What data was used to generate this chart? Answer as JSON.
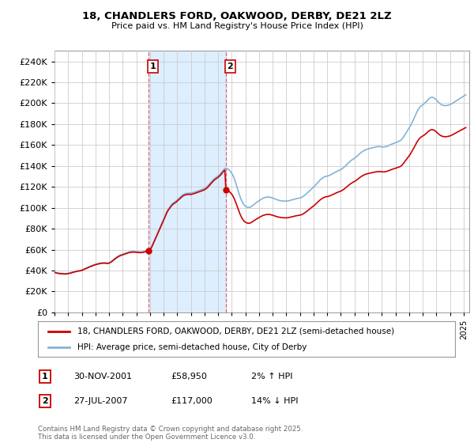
{
  "title": "18, CHANDLERS FORD, OAKWOOD, DERBY, DE21 2LZ",
  "subtitle": "Price paid vs. HM Land Registry's House Price Index (HPI)",
  "ylim": [
    0,
    250000
  ],
  "yticks": [
    0,
    20000,
    40000,
    60000,
    80000,
    100000,
    120000,
    140000,
    160000,
    180000,
    200000,
    220000,
    240000
  ],
  "legend_line1": "18, CHANDLERS FORD, OAKWOOD, DERBY, DE21 2LZ (semi-detached house)",
  "legend_line2": "HPI: Average price, semi-detached house, City of Derby",
  "sale_color": "#cc0000",
  "hpi_color": "#82b4d8",
  "grid_color": "#cccccc",
  "vspan_color": "#ddeeff",
  "vline_color": "#dd4444",
  "copyright_text": "Contains HM Land Registry data © Crown copyright and database right 2025.\nThis data is licensed under the Open Government Licence v3.0.",
  "sale1_date": [
    2001,
    11,
    30
  ],
  "sale1_price": 58950,
  "sale2_date": [
    2007,
    7,
    27
  ],
  "sale2_price": 117000,
  "ann1_date": "30-NOV-2001",
  "ann1_price": "£58,950",
  "ann1_hpi": "2% ↑ HPI",
  "ann2_date": "27-JUL-2007",
  "ann2_price": "£117,000",
  "ann2_hpi": "14% ↓ HPI",
  "hpi_data": [
    [
      1995,
      1,
      38500
    ],
    [
      1995,
      2,
      38200
    ],
    [
      1995,
      3,
      37900
    ],
    [
      1995,
      4,
      37700
    ],
    [
      1995,
      5,
      37500
    ],
    [
      1995,
      6,
      37400
    ],
    [
      1995,
      7,
      37300
    ],
    [
      1995,
      8,
      37200
    ],
    [
      1995,
      9,
      37100
    ],
    [
      1995,
      10,
      37000
    ],
    [
      1995,
      11,
      37100
    ],
    [
      1995,
      12,
      37200
    ],
    [
      1996,
      1,
      37400
    ],
    [
      1996,
      2,
      37600
    ],
    [
      1996,
      3,
      37900
    ],
    [
      1996,
      4,
      38200
    ],
    [
      1996,
      5,
      38500
    ],
    [
      1996,
      6,
      38800
    ],
    [
      1996,
      7,
      39100
    ],
    [
      1996,
      8,
      39400
    ],
    [
      1996,
      9,
      39600
    ],
    [
      1996,
      10,
      39800
    ],
    [
      1996,
      11,
      40000
    ],
    [
      1996,
      12,
      40200
    ],
    [
      1997,
      1,
      40500
    ],
    [
      1997,
      2,
      41000
    ],
    [
      1997,
      3,
      41500
    ],
    [
      1997,
      4,
      42000
    ],
    [
      1997,
      5,
      42500
    ],
    [
      1997,
      6,
      43000
    ],
    [
      1997,
      7,
      43500
    ],
    [
      1997,
      8,
      44000
    ],
    [
      1997,
      9,
      44400
    ],
    [
      1997,
      10,
      44800
    ],
    [
      1997,
      11,
      45200
    ],
    [
      1997,
      12,
      45600
    ],
    [
      1998,
      1,
      46000
    ],
    [
      1998,
      2,
      46300
    ],
    [
      1998,
      3,
      46600
    ],
    [
      1998,
      4,
      46900
    ],
    [
      1998,
      5,
      47100
    ],
    [
      1998,
      6,
      47300
    ],
    [
      1998,
      7,
      47400
    ],
    [
      1998,
      8,
      47500
    ],
    [
      1998,
      9,
      47500
    ],
    [
      1998,
      10,
      47400
    ],
    [
      1998,
      11,
      47300
    ],
    [
      1998,
      12,
      47200
    ],
    [
      1999,
      1,
      47500
    ],
    [
      1999,
      2,
      48000
    ],
    [
      1999,
      3,
      48700
    ],
    [
      1999,
      4,
      49500
    ],
    [
      1999,
      5,
      50400
    ],
    [
      1999,
      6,
      51300
    ],
    [
      1999,
      7,
      52200
    ],
    [
      1999,
      8,
      53000
    ],
    [
      1999,
      9,
      53700
    ],
    [
      1999,
      10,
      54300
    ],
    [
      1999,
      11,
      54800
    ],
    [
      1999,
      12,
      55200
    ],
    [
      2000,
      1,
      55600
    ],
    [
      2000,
      2,
      56000
    ],
    [
      2000,
      3,
      56400
    ],
    [
      2000,
      4,
      56800
    ],
    [
      2000,
      5,
      57200
    ],
    [
      2000,
      6,
      57500
    ],
    [
      2000,
      7,
      57800
    ],
    [
      2000,
      8,
      58000
    ],
    [
      2000,
      9,
      58100
    ],
    [
      2000,
      10,
      58200
    ],
    [
      2000,
      11,
      58200
    ],
    [
      2000,
      12,
      58100
    ],
    [
      2001,
      1,
      58000
    ],
    [
      2001,
      2,
      57900
    ],
    [
      2001,
      3,
      57800
    ],
    [
      2001,
      4,
      57700
    ],
    [
      2001,
      5,
      57700
    ],
    [
      2001,
      6,
      57800
    ],
    [
      2001,
      7,
      58000
    ],
    [
      2001,
      8,
      58300
    ],
    [
      2001,
      9,
      58600
    ],
    [
      2001,
      10,
      58900
    ],
    [
      2001,
      11,
      59200
    ],
    [
      2001,
      12,
      59600
    ],
    [
      2002,
      1,
      60500
    ],
    [
      2002,
      2,
      62000
    ],
    [
      2002,
      3,
      64000
    ],
    [
      2002,
      4,
      66500
    ],
    [
      2002,
      5,
      69000
    ],
    [
      2002,
      6,
      71500
    ],
    [
      2002,
      7,
      74000
    ],
    [
      2002,
      8,
      76500
    ],
    [
      2002,
      9,
      79000
    ],
    [
      2002,
      10,
      81500
    ],
    [
      2002,
      11,
      84000
    ],
    [
      2002,
      12,
      86500
    ],
    [
      2003,
      1,
      89000
    ],
    [
      2003,
      2,
      91500
    ],
    [
      2003,
      3,
      94000
    ],
    [
      2003,
      4,
      96500
    ],
    [
      2003,
      5,
      98500
    ],
    [
      2003,
      6,
      100000
    ],
    [
      2003,
      7,
      101500
    ],
    [
      2003,
      8,
      103000
    ],
    [
      2003,
      9,
      104200
    ],
    [
      2003,
      10,
      105000
    ],
    [
      2003,
      11,
      105800
    ],
    [
      2003,
      12,
      106500
    ],
    [
      2004,
      1,
      107500
    ],
    [
      2004,
      2,
      108500
    ],
    [
      2004,
      3,
      109500
    ],
    [
      2004,
      4,
      110500
    ],
    [
      2004,
      5,
      111500
    ],
    [
      2004,
      6,
      112500
    ],
    [
      2004,
      7,
      113000
    ],
    [
      2004,
      8,
      113500
    ],
    [
      2004,
      9,
      113800
    ],
    [
      2004,
      10,
      113900
    ],
    [
      2004,
      11,
      114000
    ],
    [
      2004,
      12,
      114000
    ],
    [
      2005,
      1,
      114000
    ],
    [
      2005,
      2,
      114200
    ],
    [
      2005,
      3,
      114500
    ],
    [
      2005,
      4,
      114800
    ],
    [
      2005,
      5,
      115200
    ],
    [
      2005,
      6,
      115600
    ],
    [
      2005,
      7,
      116000
    ],
    [
      2005,
      8,
      116400
    ],
    [
      2005,
      9,
      116800
    ],
    [
      2005,
      10,
      117200
    ],
    [
      2005,
      11,
      117600
    ],
    [
      2005,
      12,
      118000
    ],
    [
      2006,
      1,
      118500
    ],
    [
      2006,
      2,
      119200
    ],
    [
      2006,
      3,
      120000
    ],
    [
      2006,
      4,
      121000
    ],
    [
      2006,
      5,
      122200
    ],
    [
      2006,
      6,
      123500
    ],
    [
      2006,
      7,
      124800
    ],
    [
      2006,
      8,
      126000
    ],
    [
      2006,
      9,
      127200
    ],
    [
      2006,
      10,
      128200
    ],
    [
      2006,
      11,
      129000
    ],
    [
      2006,
      12,
      129700
    ],
    [
      2007,
      1,
      130500
    ],
    [
      2007,
      2,
      131500
    ],
    [
      2007,
      3,
      132500
    ],
    [
      2007,
      4,
      133800
    ],
    [
      2007,
      5,
      135200
    ],
    [
      2007,
      6,
      136500
    ],
    [
      2007,
      7,
      137500
    ],
    [
      2007,
      8,
      137800
    ],
    [
      2007,
      9,
      137500
    ],
    [
      2007,
      10,
      136800
    ],
    [
      2007,
      11,
      135800
    ],
    [
      2007,
      12,
      134500
    ],
    [
      2008,
      1,
      133000
    ],
    [
      2008,
      2,
      131000
    ],
    [
      2008,
      3,
      128500
    ],
    [
      2008,
      4,
      125500
    ],
    [
      2008,
      5,
      122000
    ],
    [
      2008,
      6,
      118500
    ],
    [
      2008,
      7,
      115000
    ],
    [
      2008,
      8,
      111500
    ],
    [
      2008,
      9,
      108500
    ],
    [
      2008,
      10,
      106000
    ],
    [
      2008,
      11,
      104000
    ],
    [
      2008,
      12,
      102500
    ],
    [
      2009,
      1,
      101500
    ],
    [
      2009,
      2,
      100800
    ],
    [
      2009,
      3,
      100400
    ],
    [
      2009,
      4,
      100300
    ],
    [
      2009,
      5,
      100500
    ],
    [
      2009,
      6,
      101000
    ],
    [
      2009,
      7,
      101800
    ],
    [
      2009,
      8,
      102700
    ],
    [
      2009,
      9,
      103600
    ],
    [
      2009,
      10,
      104500
    ],
    [
      2009,
      11,
      105300
    ],
    [
      2009,
      12,
      106000
    ],
    [
      2010,
      1,
      106800
    ],
    [
      2010,
      2,
      107500
    ],
    [
      2010,
      3,
      108200
    ],
    [
      2010,
      4,
      108800
    ],
    [
      2010,
      5,
      109300
    ],
    [
      2010,
      6,
      109700
    ],
    [
      2010,
      7,
      110000
    ],
    [
      2010,
      8,
      110200
    ],
    [
      2010,
      9,
      110300
    ],
    [
      2010,
      10,
      110200
    ],
    [
      2010,
      11,
      110000
    ],
    [
      2010,
      12,
      109700
    ],
    [
      2011,
      1,
      109300
    ],
    [
      2011,
      2,
      108900
    ],
    [
      2011,
      3,
      108500
    ],
    [
      2011,
      4,
      108000
    ],
    [
      2011,
      5,
      107600
    ],
    [
      2011,
      6,
      107300
    ],
    [
      2011,
      7,
      107000
    ],
    [
      2011,
      8,
      106800
    ],
    [
      2011,
      9,
      106600
    ],
    [
      2011,
      10,
      106500
    ],
    [
      2011,
      11,
      106400
    ],
    [
      2011,
      12,
      106400
    ],
    [
      2012,
      1,
      106400
    ],
    [
      2012,
      2,
      106500
    ],
    [
      2012,
      3,
      106700
    ],
    [
      2012,
      4,
      107000
    ],
    [
      2012,
      5,
      107300
    ],
    [
      2012,
      6,
      107600
    ],
    [
      2012,
      7,
      107900
    ],
    [
      2012,
      8,
      108200
    ],
    [
      2012,
      9,
      108500
    ],
    [
      2012,
      10,
      108800
    ],
    [
      2012,
      11,
      109000
    ],
    [
      2012,
      12,
      109200
    ],
    [
      2013,
      1,
      109400
    ],
    [
      2013,
      2,
      109800
    ],
    [
      2013,
      3,
      110300
    ],
    [
      2013,
      4,
      111000
    ],
    [
      2013,
      5,
      111800
    ],
    [
      2013,
      6,
      112700
    ],
    [
      2013,
      7,
      113700
    ],
    [
      2013,
      8,
      114700
    ],
    [
      2013,
      9,
      115700
    ],
    [
      2013,
      10,
      116700
    ],
    [
      2013,
      11,
      117700
    ],
    [
      2013,
      12,
      118700
    ],
    [
      2014,
      1,
      119800
    ],
    [
      2014,
      2,
      120900
    ],
    [
      2014,
      3,
      122100
    ],
    [
      2014,
      4,
      123300
    ],
    [
      2014,
      5,
      124500
    ],
    [
      2014,
      6,
      125700
    ],
    [
      2014,
      7,
      126800
    ],
    [
      2014,
      8,
      127800
    ],
    [
      2014,
      9,
      128600
    ],
    [
      2014,
      10,
      129300
    ],
    [
      2014,
      11,
      129800
    ],
    [
      2014,
      12,
      130100
    ],
    [
      2015,
      1,
      130300
    ],
    [
      2015,
      2,
      130600
    ],
    [
      2015,
      3,
      131000
    ],
    [
      2015,
      4,
      131500
    ],
    [
      2015,
      5,
      132100
    ],
    [
      2015,
      6,
      132700
    ],
    [
      2015,
      7,
      133400
    ],
    [
      2015,
      8,
      134000
    ],
    [
      2015,
      9,
      134600
    ],
    [
      2015,
      10,
      135100
    ],
    [
      2015,
      11,
      135600
    ],
    [
      2015,
      12,
      136000
    ],
    [
      2016,
      1,
      136500
    ],
    [
      2016,
      2,
      137200
    ],
    [
      2016,
      3,
      138000
    ],
    [
      2016,
      4,
      139000
    ],
    [
      2016,
      5,
      140000
    ],
    [
      2016,
      6,
      141100
    ],
    [
      2016,
      7,
      142200
    ],
    [
      2016,
      8,
      143300
    ],
    [
      2016,
      9,
      144300
    ],
    [
      2016,
      10,
      145200
    ],
    [
      2016,
      11,
      146000
    ],
    [
      2016,
      12,
      146700
    ],
    [
      2017,
      1,
      147400
    ],
    [
      2017,
      2,
      148200
    ],
    [
      2017,
      3,
      149100
    ],
    [
      2017,
      4,
      150100
    ],
    [
      2017,
      5,
      151100
    ],
    [
      2017,
      6,
      152100
    ],
    [
      2017,
      7,
      153000
    ],
    [
      2017,
      8,
      153800
    ],
    [
      2017,
      9,
      154500
    ],
    [
      2017,
      10,
      155100
    ],
    [
      2017,
      11,
      155600
    ],
    [
      2017,
      12,
      156000
    ],
    [
      2018,
      1,
      156300
    ],
    [
      2018,
      2,
      156600
    ],
    [
      2018,
      3,
      156900
    ],
    [
      2018,
      4,
      157200
    ],
    [
      2018,
      5,
      157500
    ],
    [
      2018,
      6,
      157800
    ],
    [
      2018,
      7,
      158000
    ],
    [
      2018,
      8,
      158200
    ],
    [
      2018,
      9,
      158400
    ],
    [
      2018,
      10,
      158500
    ],
    [
      2018,
      11,
      158500
    ],
    [
      2018,
      12,
      158400
    ],
    [
      2019,
      1,
      158200
    ],
    [
      2019,
      2,
      158100
    ],
    [
      2019,
      3,
      158100
    ],
    [
      2019,
      4,
      158300
    ],
    [
      2019,
      5,
      158600
    ],
    [
      2019,
      6,
      159000
    ],
    [
      2019,
      7,
      159500
    ],
    [
      2019,
      8,
      160000
    ],
    [
      2019,
      9,
      160500
    ],
    [
      2019,
      10,
      161000
    ],
    [
      2019,
      11,
      161400
    ],
    [
      2019,
      12,
      161800
    ],
    [
      2020,
      1,
      162200
    ],
    [
      2020,
      2,
      162700
    ],
    [
      2020,
      3,
      163200
    ],
    [
      2020,
      4,
      163600
    ],
    [
      2020,
      5,
      164000
    ],
    [
      2020,
      6,
      164800
    ],
    [
      2020,
      7,
      166000
    ],
    [
      2020,
      8,
      167500
    ],
    [
      2020,
      9,
      169200
    ],
    [
      2020,
      10,
      171000
    ],
    [
      2020,
      11,
      172800
    ],
    [
      2020,
      12,
      174500
    ],
    [
      2021,
      1,
      176200
    ],
    [
      2021,
      2,
      178000
    ],
    [
      2021,
      3,
      180000
    ],
    [
      2021,
      4,
      182200
    ],
    [
      2021,
      5,
      184500
    ],
    [
      2021,
      6,
      187000
    ],
    [
      2021,
      7,
      189500
    ],
    [
      2021,
      8,
      191800
    ],
    [
      2021,
      9,
      193800
    ],
    [
      2021,
      10,
      195500
    ],
    [
      2021,
      11,
      196800
    ],
    [
      2021,
      12,
      197800
    ],
    [
      2022,
      1,
      198500
    ],
    [
      2022,
      2,
      199300
    ],
    [
      2022,
      3,
      200200
    ],
    [
      2022,
      4,
      201300
    ],
    [
      2022,
      5,
      202500
    ],
    [
      2022,
      6,
      203700
    ],
    [
      2022,
      7,
      204700
    ],
    [
      2022,
      8,
      205400
    ],
    [
      2022,
      9,
      205700
    ],
    [
      2022,
      10,
      205600
    ],
    [
      2022,
      11,
      205100
    ],
    [
      2022,
      12,
      204300
    ],
    [
      2023,
      1,
      203200
    ],
    [
      2023,
      2,
      202000
    ],
    [
      2023,
      3,
      200800
    ],
    [
      2023,
      4,
      199800
    ],
    [
      2023,
      5,
      199000
    ],
    [
      2023,
      6,
      198400
    ],
    [
      2023,
      7,
      198000
    ],
    [
      2023,
      8,
      197800
    ],
    [
      2023,
      9,
      197700
    ],
    [
      2023,
      10,
      197800
    ],
    [
      2023,
      11,
      198000
    ],
    [
      2023,
      12,
      198300
    ],
    [
      2024,
      1,
      198700
    ],
    [
      2024,
      2,
      199200
    ],
    [
      2024,
      3,
      199800
    ],
    [
      2024,
      4,
      200500
    ],
    [
      2024,
      5,
      201200
    ],
    [
      2024,
      6,
      201900
    ],
    [
      2024,
      7,
      202600
    ],
    [
      2024,
      8,
      203300
    ],
    [
      2024,
      9,
      204000
    ],
    [
      2024,
      10,
      204700
    ],
    [
      2024,
      11,
      205400
    ],
    [
      2024,
      12,
      206000
    ],
    [
      2025,
      1,
      206800
    ],
    [
      2025,
      2,
      207500
    ],
    [
      2025,
      3,
      208000
    ]
  ]
}
